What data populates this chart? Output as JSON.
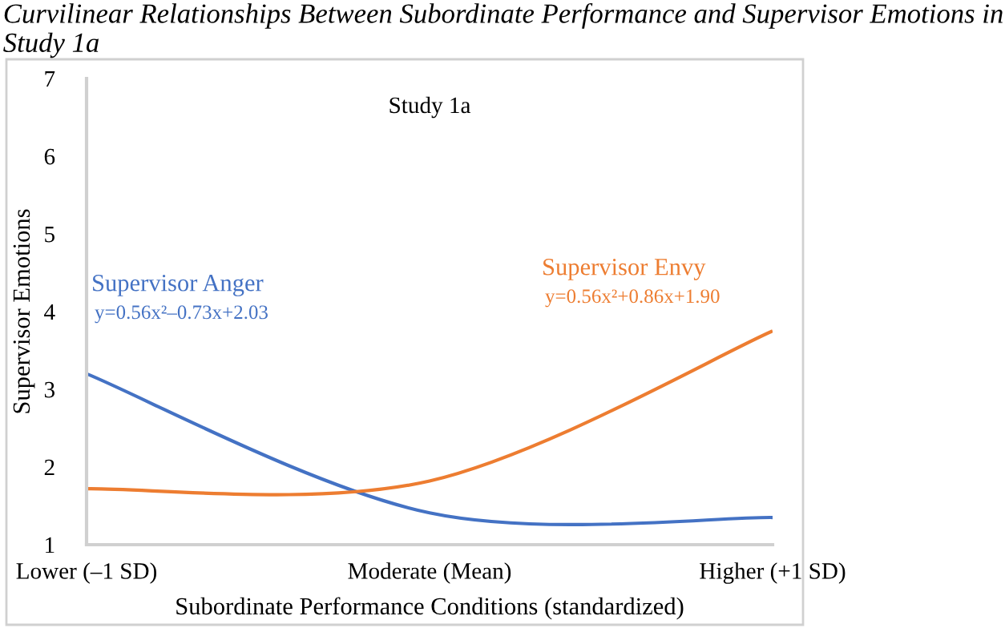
{
  "chart_data": {
    "type": "line",
    "title": "Curvilinear Relationships Between Subordinate Performance and Supervisor Emotions in Study 1a",
    "xlabel": "Subordinate Performance Conditions (standardized)",
    "ylabel": "Supervisor Emotions",
    "categories": [
      "Lower (–1 SD)",
      "Moderate (Mean)",
      "Higher (+1 SD)"
    ],
    "series": [
      {
        "name": "Supervisor Anger",
        "color": "#4472c4",
        "values": [
          3.2,
          1.41,
          1.35
        ]
      },
      {
        "name": "Supervisor Envy",
        "color": "#ed7d31",
        "values": [
          1.72,
          1.82,
          3.75
        ]
      }
    ],
    "annotations": [
      "Study 1a",
      "y=0.56x²–0.73x+2.03",
      "y=0.56x²+0.86x+1.90"
    ],
    "ylim": [
      1,
      7
    ],
    "yticks": [
      1,
      2,
      3,
      4,
      5,
      6,
      7
    ],
    "grid": false,
    "legend": false,
    "marker": "none",
    "line_style": "solid"
  }
}
